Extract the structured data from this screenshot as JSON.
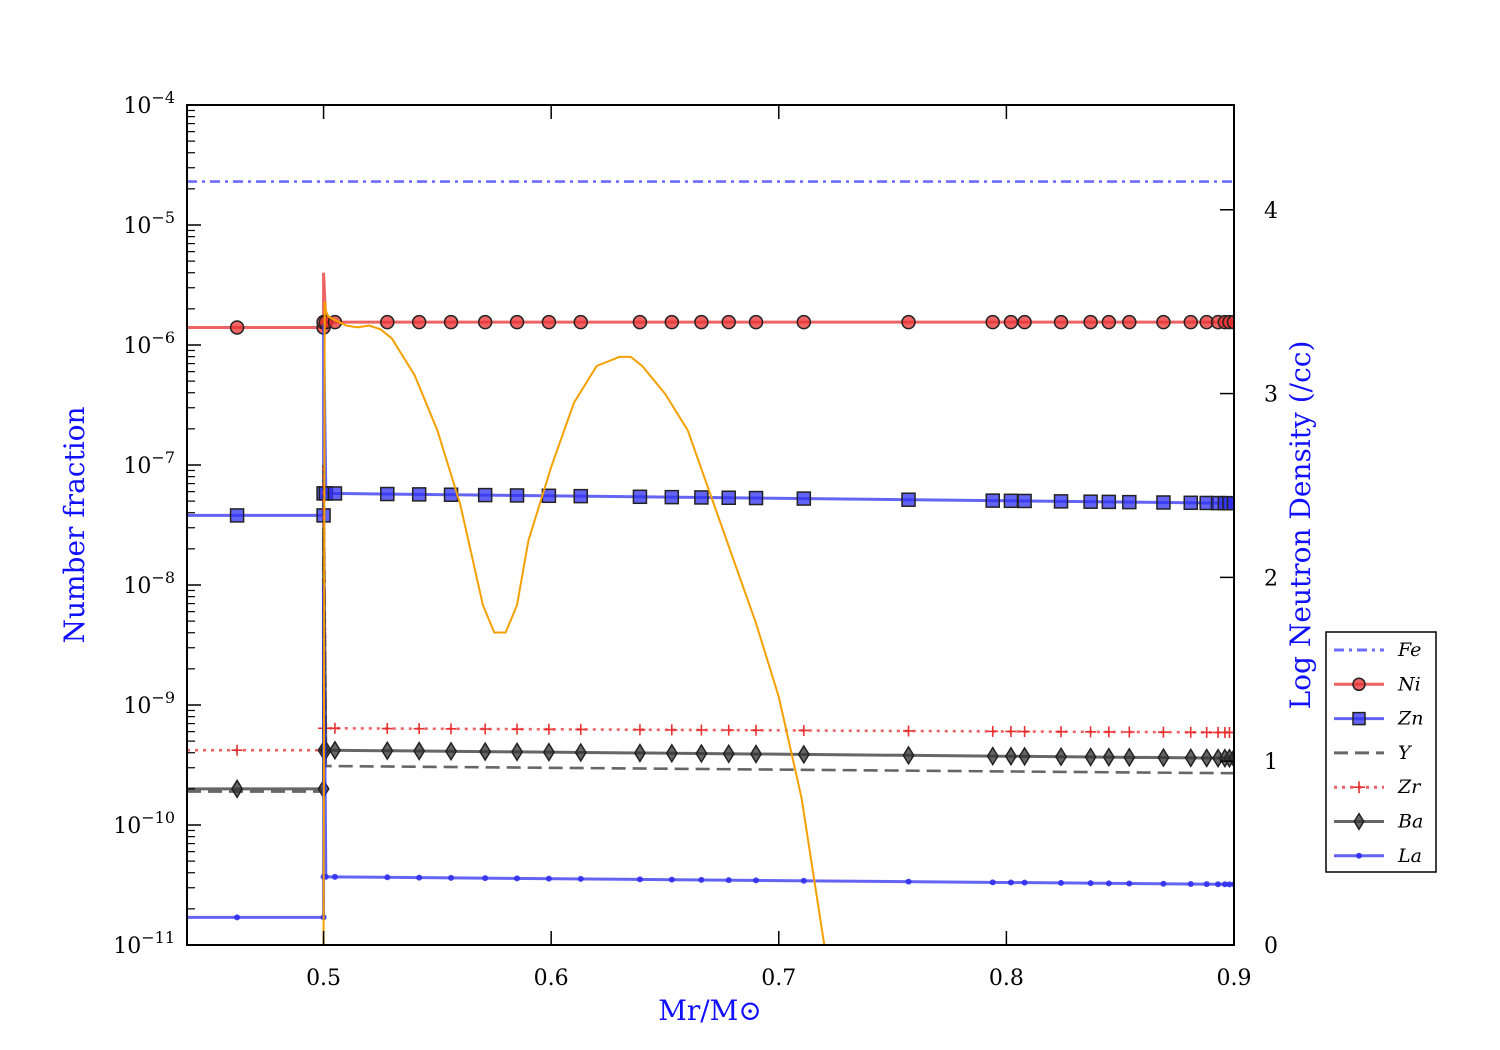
{
  "chart_data": {
    "type": "line",
    "xlabel": "Mr/M⊙",
    "ylabel_left": "Number fraction",
    "ylabel_right": "Log Neutron Density (/cc)",
    "xlim": [
      0.44,
      0.9
    ],
    "ylim_left": [
      1e-11,
      0.0001
    ],
    "yscale_left": "log",
    "ylim_right": [
      0,
      4.57
    ],
    "x_ticks": [
      "0.5",
      "0.6",
      "0.7",
      "0.8",
      "0.9"
    ],
    "x_tick_values": [
      0.5,
      0.6,
      0.7,
      0.8,
      0.9
    ],
    "y_left_tick_exponents": [
      -4,
      -5,
      -6,
      -7,
      -8,
      -9,
      -10,
      -11
    ],
    "y_left_tick_base": "10",
    "y_right_ticks": [
      "0",
      "1",
      "2",
      "3",
      "4"
    ],
    "y_right_tick_values": [
      0,
      1,
      2,
      3,
      4
    ],
    "legend_position": "right",
    "marker_x": [
      0.5,
      0.501,
      0.505,
      0.528,
      0.542,
      0.556,
      0.571,
      0.585,
      0.599,
      0.613,
      0.639,
      0.653,
      0.666,
      0.678,
      0.69,
      0.711,
      0.757,
      0.794,
      0.802,
      0.808,
      0.824,
      0.837,
      0.845,
      0.854,
      0.869,
      0.881,
      0.888,
      0.893,
      0.896,
      0.898,
      0.9
    ],
    "series": [
      {
        "name": "Fe",
        "color": "#3b3bff",
        "style": "dashdot",
        "marker": "none",
        "pre_value": 2.3e-05,
        "post_start": 2.3e-05,
        "post_end": 2.3e-05,
        "spike": 2.3e-05
      },
      {
        "name": "Ni",
        "color": "#e83030",
        "style": "solid",
        "marker": "circle",
        "pre_value": 1.4e-06,
        "post_start": 1.55e-06,
        "post_end": 1.55e-06,
        "spike": 4e-06
      },
      {
        "name": "Zn",
        "color": "#3030f0",
        "style": "solid",
        "marker": "square",
        "pre_value": 3.8e-08,
        "post_start": 5.8e-08,
        "post_end": 4.8e-08,
        "spike": 1.5e-06
      },
      {
        "name": "Y",
        "color": "#333333",
        "style": "dashed",
        "marker": "none",
        "pre_value": 1.9e-10,
        "post_start": 3.1e-10,
        "post_end": 2.7e-10,
        "spike": 1e-07
      },
      {
        "name": "Zr",
        "color": "#e83030",
        "style": "dotted",
        "marker": "plus",
        "pre_value": 4.2e-10,
        "post_start": 6.4e-10,
        "post_end": 5.9e-10,
        "spike": 1e-07
      },
      {
        "name": "Ba",
        "color": "#333333",
        "style": "solid",
        "marker": "diamond",
        "pre_value": 2e-10,
        "post_start": 4.2e-10,
        "post_end": 3.6e-10,
        "spike": 3e-08
      },
      {
        "name": "La",
        "color": "#3030f0",
        "style": "solid",
        "marker": "dot",
        "pre_value": 1.7e-11,
        "post_start": 3.7e-11,
        "post_end": 3.2e-11,
        "spike": 1e-08
      }
    ],
    "neutron_density": {
      "color": "#f5a000",
      "x": [
        0.5,
        0.5005,
        0.501,
        0.502,
        0.505,
        0.51,
        0.515,
        0.52,
        0.525,
        0.53,
        0.54,
        0.55,
        0.56,
        0.57,
        0.575,
        0.58,
        0.585,
        0.59,
        0.6,
        0.61,
        0.62,
        0.63,
        0.635,
        0.64,
        0.65,
        0.66,
        0.67,
        0.68,
        0.69,
        0.7,
        0.71,
        0.715,
        0.72
      ],
      "y": [
        0.0,
        3.5,
        3.45,
        3.42,
        3.4,
        3.37,
        3.36,
        3.37,
        3.35,
        3.3,
        3.1,
        2.8,
        2.4,
        1.85,
        1.7,
        1.7,
        1.85,
        2.2,
        2.6,
        2.95,
        3.15,
        3.2,
        3.2,
        3.15,
        3.0,
        2.8,
        2.45,
        2.1,
        1.75,
        1.35,
        0.8,
        0.4,
        0.0
      ]
    }
  }
}
